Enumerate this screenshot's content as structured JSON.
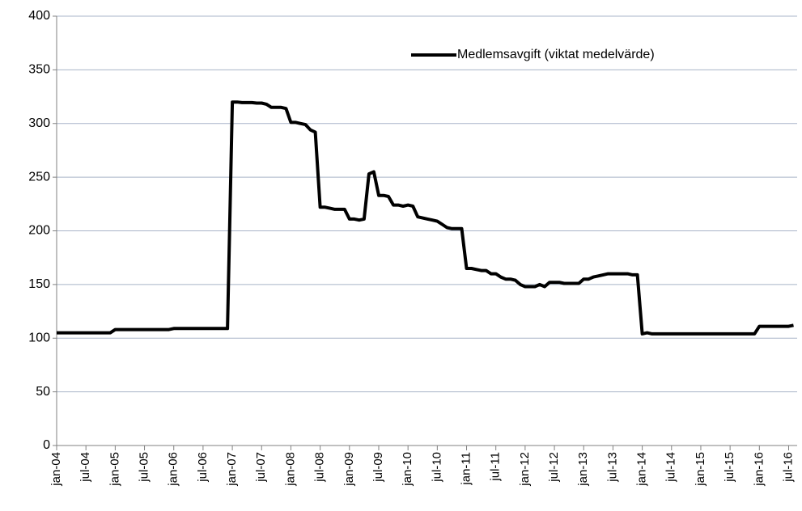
{
  "chart_data": {
    "type": "line",
    "categories": [
      "jan-04",
      null,
      null,
      null,
      null,
      null,
      "jul-04",
      null,
      null,
      null,
      null,
      null,
      "jan-05",
      null,
      null,
      null,
      null,
      null,
      "jul-05",
      null,
      null,
      null,
      null,
      null,
      "jan-06",
      null,
      null,
      null,
      null,
      null,
      "jul-06",
      null,
      null,
      null,
      null,
      null,
      "jan-07",
      null,
      null,
      null,
      null,
      null,
      "jul-07",
      null,
      null,
      null,
      null,
      null,
      "jan-08",
      null,
      null,
      null,
      null,
      null,
      "jul-08",
      null,
      null,
      null,
      null,
      null,
      "jan-09",
      null,
      null,
      null,
      null,
      null,
      "jul-09",
      null,
      null,
      null,
      null,
      null,
      "jan-10",
      null,
      null,
      null,
      null,
      null,
      "jul-10",
      null,
      null,
      null,
      null,
      null,
      "jan-11",
      null,
      null,
      null,
      null,
      null,
      "jul-11",
      null,
      null,
      null,
      null,
      null,
      "jan-12",
      null,
      null,
      null,
      null,
      null,
      "jul-12",
      null,
      null,
      null,
      null,
      null,
      "jan-13",
      null,
      null,
      null,
      null,
      null,
      "jul-13",
      null,
      null,
      null,
      null,
      null,
      "jan-14",
      null,
      null,
      null,
      null,
      null,
      "jul-14",
      null,
      null,
      null,
      null,
      null,
      "jan-15",
      null,
      null,
      null,
      null,
      null,
      "jul-15",
      null,
      null,
      null,
      null,
      null,
      "jan-16",
      null,
      null,
      null,
      null,
      null,
      "jul-16",
      null
    ],
    "series": [
      {
        "name": "Medlemsavgift (viktat medelvärde)",
        "color": "#000000",
        "values": [
          105,
          105,
          105,
          105,
          105,
          105,
          105,
          105,
          105,
          105,
          105,
          105,
          108,
          108,
          108,
          108,
          108,
          108,
          108,
          108,
          108,
          108,
          108,
          108,
          109,
          109,
          109,
          109,
          109,
          109,
          109,
          109,
          109,
          109,
          109,
          109,
          320,
          320,
          319.5,
          319.5,
          319.5,
          319,
          319,
          318,
          315,
          315,
          315,
          314,
          301,
          301,
          300,
          299,
          294,
          292,
          222,
          222,
          221,
          220,
          220,
          220,
          211,
          211,
          210,
          211,
          253,
          255,
          233,
          233,
          232,
          224,
          224,
          223,
          224,
          223,
          213,
          212,
          211,
          210,
          209,
          206,
          203,
          202,
          202,
          202,
          165,
          165,
          164,
          163,
          163,
          160,
          160,
          157,
          155,
          155,
          154,
          150,
          148,
          148,
          148,
          150,
          148,
          152,
          152,
          152,
          151,
          151,
          151,
          151,
          155,
          155,
          157,
          158,
          159,
          160,
          160,
          160,
          160,
          160,
          159,
          159,
          104,
          105,
          104,
          104,
          104,
          104,
          104,
          104,
          104,
          104,
          104,
          104,
          104,
          104,
          104,
          104,
          104,
          104,
          104,
          104,
          104,
          104,
          104,
          104,
          111,
          111,
          111,
          111,
          111,
          111,
          111,
          112
        ]
      }
    ],
    "ylim": [
      0,
      400
    ],
    "yticks": [
      0,
      50,
      100,
      150,
      200,
      250,
      300,
      350,
      400
    ],
    "grid": true,
    "legend": "upper right"
  }
}
